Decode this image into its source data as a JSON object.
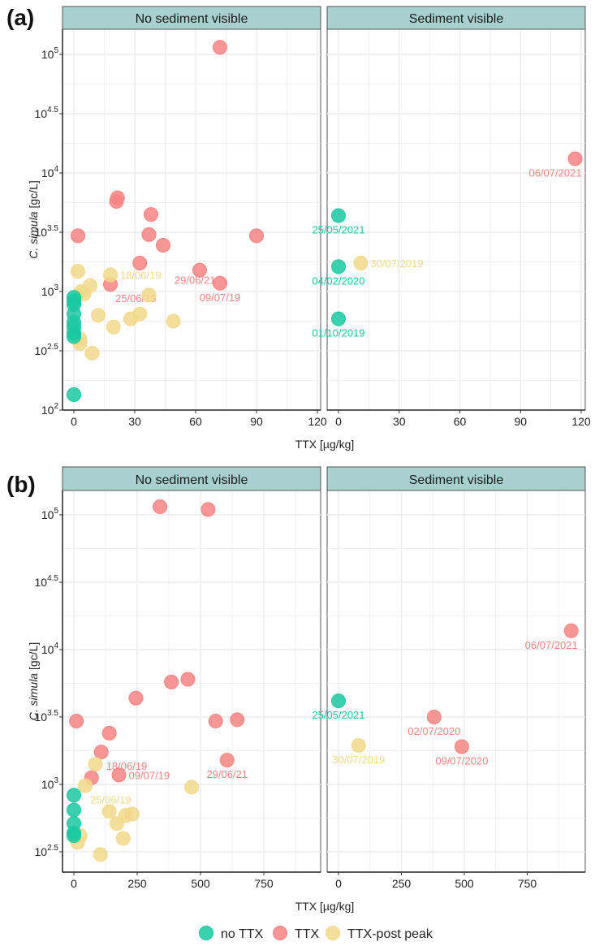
{
  "colors": {
    "no TTX": "#1ac9a0",
    "TTX": "#f48482",
    "TTX-post peak": "#f1d98a",
    "strip_bg": "#a8d0cf",
    "grid": "#ebebeb",
    "frame": "#555555"
  },
  "legend": {
    "items": [
      {
        "label": "no TTX",
        "key": "no TTX"
      },
      {
        "label": "TTX",
        "key": "TTX"
      },
      {
        "label": "TTX-post peak",
        "key": "TTX-post peak"
      }
    ],
    "position": "bottom"
  },
  "chart_data": [
    {
      "type": "scatter",
      "panel_label": "(a)",
      "xlabel": "TTX [µg/kg]",
      "ylabel_italic": "C. simula",
      "ylabel_rest": " [gc/L]",
      "yscale": "log10",
      "ylim_log": [
        2,
        5.2
      ],
      "yticks_log": [
        2,
        2.5,
        3,
        3.5,
        4,
        4.5,
        5
      ],
      "ytick_labels": [
        [
          "10",
          "2"
        ],
        [
          "10",
          "2.5"
        ],
        [
          "10",
          "3"
        ],
        [
          "10",
          "3.5"
        ],
        [
          "10",
          "4"
        ],
        [
          "10",
          "4.5"
        ],
        [
          "10",
          "5"
        ]
      ],
      "xlim": [
        -5,
        122
      ],
      "xticks": [
        0,
        30,
        60,
        90,
        120
      ],
      "xtick_labels": [
        "0",
        "30",
        "60",
        "90",
        "120"
      ],
      "grid": true,
      "facets": [
        {
          "title": "No sediment visible",
          "points": [
            {
              "x": 72,
              "log_y": 5.06,
              "group": "TTX"
            },
            {
              "x": 21.5,
              "log_y": 3.79,
              "group": "TTX"
            },
            {
              "x": 21,
              "log_y": 3.76,
              "group": "TTX"
            },
            {
              "x": 38,
              "log_y": 3.65,
              "group": "TTX"
            },
            {
              "x": 2,
              "log_y": 3.47,
              "group": "TTX"
            },
            {
              "x": 37,
              "log_y": 3.48,
              "group": "TTX"
            },
            {
              "x": 44,
              "log_y": 3.39,
              "group": "TTX"
            },
            {
              "x": 90,
              "log_y": 3.47,
              "group": "TTX"
            },
            {
              "x": 32.5,
              "log_y": 3.24,
              "group": "TTX"
            },
            {
              "x": 62,
              "log_y": 3.18,
              "group": "TTX"
            },
            {
              "x": 18,
              "log_y": 3.06,
              "group": "TTX",
              "label": "25/06/19",
              "label_pos": "below-right"
            },
            {
              "x": 72,
              "log_y": 3.07,
              "group": "TTX",
              "label": "09/07/19",
              "label_pos": "below"
            },
            {
              "x": 2,
              "log_y": 3.17,
              "group": "TTX-post peak"
            },
            {
              "x": 18,
              "log_y": 3.14,
              "group": "TTX-post peak",
              "label": "18/06/19",
              "label_pos": "right"
            },
            {
              "x": 8,
              "log_y": 3.05,
              "group": "TTX-post peak"
            },
            {
              "x": 3.5,
              "log_y": 3.0,
              "group": "TTX-post peak"
            },
            {
              "x": 5,
              "log_y": 2.98,
              "group": "TTX-post peak"
            },
            {
              "x": 37,
              "log_y": 2.97,
              "group": "TTX-post peak"
            },
            {
              "x": 12,
              "log_y": 2.8,
              "group": "TTX-post peak"
            },
            {
              "x": 32.5,
              "log_y": 2.81,
              "group": "TTX-post peak"
            },
            {
              "x": 28,
              "log_y": 2.77,
              "group": "TTX-post peak"
            },
            {
              "x": 49,
              "log_y": 2.75,
              "group": "TTX-post peak"
            },
            {
              "x": 19.5,
              "log_y": 2.7,
              "group": "TTX-post peak"
            },
            {
              "x": 3,
              "log_y": 2.6,
              "group": "TTX-post peak"
            },
            {
              "x": 3,
              "log_y": 2.56,
              "group": "TTX-post peak"
            },
            {
              "x": 9,
              "log_y": 2.48,
              "group": "TTX-post peak"
            },
            {
              "x": 0,
              "log_y": 2.95,
              "group": "no TTX"
            },
            {
              "x": 0,
              "log_y": 2.92,
              "group": "no TTX"
            },
            {
              "x": 0,
              "log_y": 2.89,
              "group": "no TTX"
            },
            {
              "x": 0,
              "log_y": 2.81,
              "group": "no TTX"
            },
            {
              "x": 0,
              "log_y": 2.74,
              "group": "no TTX"
            },
            {
              "x": 0,
              "log_y": 2.7,
              "group": "no TTX"
            },
            {
              "x": 0,
              "log_y": 2.65,
              "group": "no TTX"
            },
            {
              "x": 0,
              "log_y": 2.62,
              "group": "no TTX"
            },
            {
              "x": 0,
              "log_y": 2.13,
              "group": "no TTX"
            }
          ],
          "extra_labels": [
            {
              "text": "29/06/21",
              "x": 61,
              "log_y": 3.1,
              "group": "TTX",
              "anchor": "end-ish"
            }
          ]
        },
        {
          "title": "Sediment visible",
          "points": [
            {
              "x": 117,
              "log_y": 4.12,
              "group": "TTX",
              "label": "06/07/2021",
              "label_pos": "below-left"
            },
            {
              "x": 0,
              "log_y": 3.64,
              "group": "no TTX",
              "label": "25/05/2021",
              "label_pos": "below"
            },
            {
              "x": 0,
              "log_y": 3.21,
              "group": "no TTX",
              "label": "04/02/2020",
              "label_pos": "below"
            },
            {
              "x": 11,
              "log_y": 3.24,
              "group": "TTX-post peak",
              "label": "30/07/2019",
              "label_pos": "right"
            },
            {
              "x": 0,
              "log_y": 2.77,
              "group": "no TTX",
              "label": "01/10/2019",
              "label_pos": "below"
            }
          ]
        }
      ]
    },
    {
      "type": "scatter",
      "panel_label": "(b)",
      "xlabel": "TTX [µg/kg]",
      "ylabel_italic": "C. simula",
      "ylabel_rest": " [gc/L]",
      "yscale": "log10",
      "ylim_log": [
        2.35,
        5.2
      ],
      "yticks_log": [
        2.5,
        3,
        3.5,
        4,
        4.5,
        5
      ],
      "ytick_labels": [
        [
          "10",
          "2.5"
        ],
        [
          "10",
          "3"
        ],
        [
          "10",
          "3.5"
        ],
        [
          "10",
          "4"
        ],
        [
          "10",
          "4.5"
        ],
        [
          "10",
          "5"
        ]
      ],
      "xlim": [
        -45,
        950
      ],
      "xticks": [
        0,
        250,
        500,
        750
      ],
      "xtick_labels": [
        "0",
        "250",
        "500",
        "750"
      ],
      "grid": true,
      "facets": [
        {
          "title": "No sediment visible",
          "points": [
            {
              "x": 340,
              "log_y": 5.06,
              "group": "TTX"
            },
            {
              "x": 530,
              "log_y": 5.04,
              "group": "TTX"
            },
            {
              "x": 385,
              "log_y": 3.76,
              "group": "TTX"
            },
            {
              "x": 450,
              "log_y": 3.78,
              "group": "TTX"
            },
            {
              "x": 245,
              "log_y": 3.64,
              "group": "TTX"
            },
            {
              "x": 10,
              "log_y": 3.47,
              "group": "TTX"
            },
            {
              "x": 560,
              "log_y": 3.47,
              "group": "TTX"
            },
            {
              "x": 645,
              "log_y": 3.48,
              "group": "TTX"
            },
            {
              "x": 140,
              "log_y": 3.38,
              "group": "TTX"
            },
            {
              "x": 108,
              "log_y": 3.24,
              "group": "TTX",
              "label": "18/06/19",
              "label_pos": "below-right"
            },
            {
              "x": 605,
              "log_y": 3.18,
              "group": "TTX",
              "label": "29/06/21",
              "label_pos": "below"
            },
            {
              "x": 70,
              "log_y": 3.05,
              "group": "TTX"
            },
            {
              "x": 178,
              "log_y": 3.07,
              "group": "TTX",
              "label": "09/07/19",
              "label_pos": "right"
            },
            {
              "x": 85,
              "log_y": 3.15,
              "group": "TTX-post peak"
            },
            {
              "x": 45,
              "log_y": 2.99,
              "group": "TTX-post peak",
              "label": "25/06/19",
              "label_pos": "below-right"
            },
            {
              "x": 465,
              "log_y": 2.98,
              "group": "TTX-post peak"
            },
            {
              "x": 140,
              "log_y": 2.8,
              "group": "TTX-post peak"
            },
            {
              "x": 205,
              "log_y": 2.77,
              "group": "TTX-post peak"
            },
            {
              "x": 230,
              "log_y": 2.78,
              "group": "TTX-post peak"
            },
            {
              "x": 170,
              "log_y": 2.71,
              "group": "TTX-post peak"
            },
            {
              "x": 195,
              "log_y": 2.6,
              "group": "TTX-post peak"
            },
            {
              "x": 25,
              "log_y": 2.62,
              "group": "TTX-post peak"
            },
            {
              "x": 15,
              "log_y": 2.57,
              "group": "TTX-post peak"
            },
            {
              "x": 105,
              "log_y": 2.48,
              "group": "TTX-post peak"
            },
            {
              "x": 0,
              "log_y": 2.92,
              "group": "no TTX"
            },
            {
              "x": 0,
              "log_y": 2.81,
              "group": "no TTX"
            },
            {
              "x": 0,
              "log_y": 2.71,
              "group": "no TTX"
            },
            {
              "x": 0,
              "log_y": 2.64,
              "group": "no TTX"
            },
            {
              "x": 0,
              "log_y": 2.62,
              "group": "no TTX"
            }
          ]
        },
        {
          "title": "Sediment visible",
          "points": [
            {
              "x": 925,
              "log_y": 4.14,
              "group": "TTX",
              "label": "06/07/2021",
              "label_pos": "below-left"
            },
            {
              "x": 0,
              "log_y": 3.62,
              "group": "no TTX",
              "label": "25/05/2021",
              "label_pos": "below"
            },
            {
              "x": 380,
              "log_y": 3.5,
              "group": "TTX",
              "label": "02/07/2020",
              "label_pos": "below"
            },
            {
              "x": 80,
              "log_y": 3.29,
              "group": "TTX-post peak",
              "label": "30/07/2019",
              "label_pos": "below"
            },
            {
              "x": 490,
              "log_y": 3.28,
              "group": "TTX",
              "label": "09/07/2020",
              "label_pos": "below"
            }
          ]
        }
      ]
    }
  ]
}
